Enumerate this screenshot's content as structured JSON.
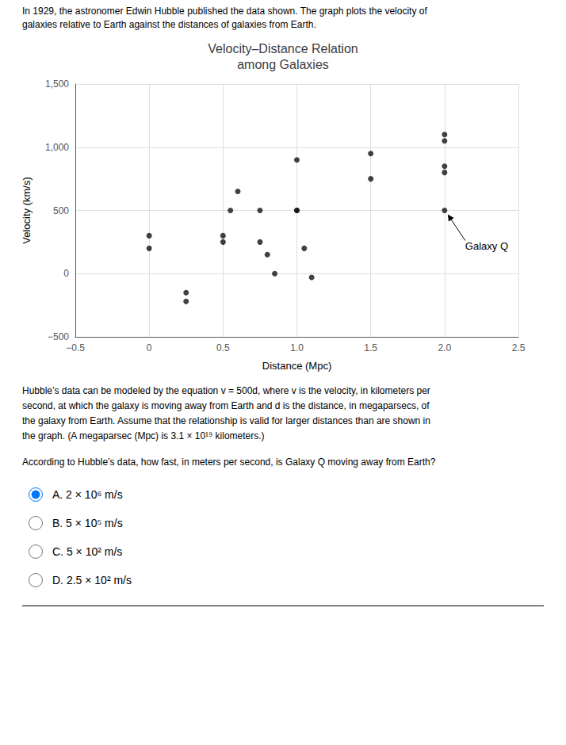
{
  "chart_data": {
    "type": "scatter",
    "title": "Velocity–Distance Relation\namong Galaxies",
    "xlabel": "Distance (Mpc)",
    "ylabel": "Velocity (km/s)",
    "x": [
      0.0,
      0.0,
      0.25,
      0.25,
      0.5,
      0.5,
      0.55,
      0.6,
      0.75,
      0.75,
      0.8,
      0.85,
      1.0,
      1.0,
      1.0,
      1.05,
      1.1,
      1.5,
      1.5,
      2.0,
      2.0,
      2.0,
      2.0,
      2.0
    ],
    "values": [
      200,
      300,
      -150,
      -220,
      300,
      250,
      500,
      650,
      500,
      250,
      150,
      0,
      500,
      500,
      900,
      200,
      -30,
      750,
      950,
      500,
      800,
      850,
      1050,
      1100
    ],
    "color": "#111111",
    "xlim": [
      -0.5,
      2.5
    ],
    "ylim": [
      -500,
      1500
    ],
    "xticks": [
      {
        "value": -0.5,
        "label": "−0.5"
      },
      0,
      0.5,
      {
        "value": 1.0,
        "label": "1.0"
      },
      1.5,
      {
        "value": 2.0,
        "label": "2.0"
      },
      2.5
    ],
    "yticks": [
      {
        "value": -500,
        "label": "−500"
      },
      0,
      500,
      {
        "value": 1000,
        "label": "1,000"
      },
      {
        "value": 1500,
        "label": "1,500"
      }
    ],
    "grid": true,
    "annotations": [
      {
        "text": "Galaxy Q",
        "x": 2.0,
        "y": 500
      }
    ]
  },
  "header": [
    "In 1929, the astronomer Edwin Hubble published the data shown. The graph plots the velocity of",
    "galaxies relative to Earth against the distances of galaxies from Earth."
  ],
  "body": [
    "Hubble’s data can be modeled by the equation v = 500d, where v is the velocity, in kilometers per",
    "second, at which the galaxy is moving away from Earth and d is the distance, in megaparsecs, of",
    "the galaxy from Earth. Assume that the relationship is valid for larger distances than are shown in",
    "the graph. (A megaparsec (Mpc) is 3.1 × 10¹⁹ kilometers.)"
  ],
  "question": "According to Hubble’s data, how fast, in meters per second, is Galaxy Q moving away from Earth?",
  "choices": [
    {
      "label": "A. 2 × 10⁶ m/s",
      "selected": true
    },
    {
      "label": "B. 5 × 10⁵ m/s",
      "selected": false
    },
    {
      "label": "C. 5 × 10² m/s",
      "selected": false
    },
    {
      "label": "D. 2.5 × 10² m/s",
      "selected": false
    }
  ]
}
